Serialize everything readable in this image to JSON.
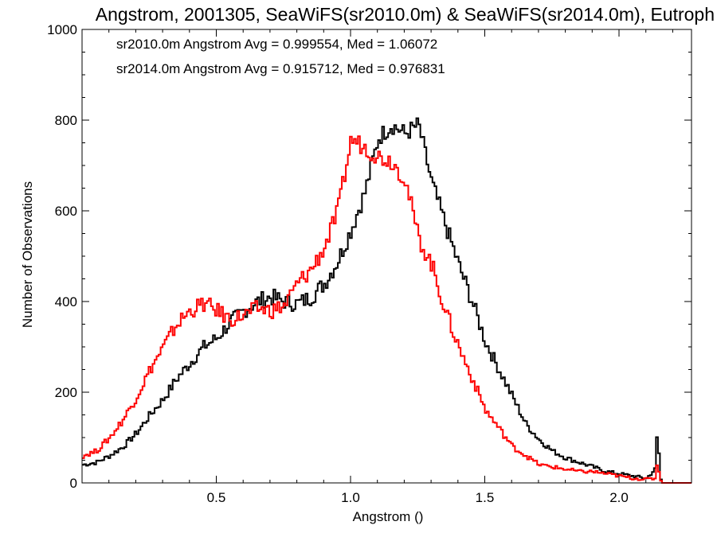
{
  "chart_data": {
    "type": "line",
    "title": "Angstrom, 2001305, SeaWiFS(sr2010.0m) & SeaWiFS(sr2014.0m), Eutroph",
    "xlabel": "Angstrom ()",
    "ylabel": "Number of Observations",
    "xlim": [
      0.0,
      2.27
    ],
    "ylim": [
      0,
      1000
    ],
    "x_ticks": [
      0.5,
      1.0,
      1.5,
      2.0
    ],
    "x_tick_labels": [
      "0.5",
      "1.0",
      "1.5",
      "2.0"
    ],
    "y_ticks": [
      0,
      200,
      400,
      600,
      800,
      1000
    ],
    "y_tick_labels": [
      "0",
      "200",
      "400",
      "600",
      "800",
      "1000"
    ],
    "grid": false,
    "legend_position": "top-left",
    "annotations": [
      {
        "text": "sr2010.0m Angstrom Avg = 0.999554, Med = 1.06072",
        "color": "#000000"
      },
      {
        "text": "sr2014.0m Angstrom Avg = 0.915712, Med = 0.976831",
        "color": "#ff0000"
      }
    ],
    "x": [
      0.0,
      0.05,
      0.1,
      0.15,
      0.2,
      0.25,
      0.3,
      0.35,
      0.4,
      0.45,
      0.5,
      0.55,
      0.6,
      0.65,
      0.7,
      0.75,
      0.8,
      0.85,
      0.9,
      0.95,
      1.0,
      1.05,
      1.1,
      1.15,
      1.2,
      1.25,
      1.3,
      1.35,
      1.4,
      1.45,
      1.5,
      1.55,
      1.6,
      1.65,
      1.7,
      1.75,
      1.8,
      1.85,
      1.9,
      1.95,
      2.0,
      2.05,
      2.1,
      2.13,
      2.14,
      2.15,
      2.16,
      2.2,
      2.27
    ],
    "series": [
      {
        "name": "sr2010.0m",
        "color": "#000000",
        "values": [
          40,
          45,
          60,
          80,
          110,
          150,
          185,
          230,
          265,
          300,
          320,
          355,
          380,
          400,
          410,
          400,
          395,
          410,
          440,
          490,
          560,
          640,
          760,
          790,
          770,
          790,
          660,
          570,
          480,
          400,
          310,
          250,
          190,
          130,
          95,
          70,
          55,
          45,
          35,
          25,
          20,
          15,
          10,
          30,
          120,
          10,
          0,
          0,
          0
        ]
      },
      {
        "name": "sr2014.0m",
        "color": "#ff0000",
        "values": [
          60,
          70,
          100,
          140,
          190,
          250,
          300,
          350,
          380,
          395,
          380,
          360,
          370,
          385,
          380,
          390,
          440,
          470,
          520,
          600,
          760,
          740,
          720,
          710,
          670,
          540,
          480,
          380,
          300,
          230,
          160,
          120,
          80,
          60,
          40,
          35,
          30,
          25,
          25,
          20,
          15,
          10,
          8,
          10,
          50,
          5,
          0,
          0,
          0
        ]
      }
    ]
  }
}
